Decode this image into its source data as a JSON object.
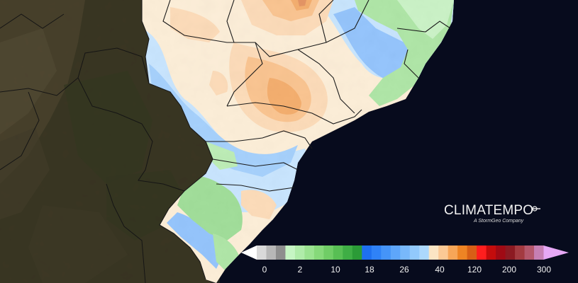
{
  "brand": {
    "name": "CLIMATEMPO",
    "tagline": "A StormGeo Company"
  },
  "legend": {
    "ticks": [
      "0",
      "2",
      "10",
      "18",
      "26",
      "40",
      "120",
      "200",
      "300"
    ],
    "colors": [
      "#ffffff",
      "#d9d9d9",
      "#b7b7b7",
      "#8e8e8e",
      "#c6f5c4",
      "#b0ecaa",
      "#9be391",
      "#86d97a",
      "#70cd66",
      "#58bf54",
      "#3fae45",
      "#2b9b37",
      "#1e70f0",
      "#2f82f7",
      "#4594f8",
      "#5ea6fa",
      "#78b8fb",
      "#92c9fc",
      "#acd8fd",
      "#fbe5c4",
      "#fbc995",
      "#f7a658",
      "#ee8424",
      "#d85f16",
      "#ff1e1e",
      "#c40c0c",
      "#a00a14",
      "#8c1a22",
      "#a33a40",
      "#b4576b",
      "#c67fb3",
      "#e6a8f5"
    ]
  },
  "map": {
    "ocean_color": "#070b1d",
    "land_color": "#3c3823",
    "state_borders": "#1a1a1a"
  }
}
